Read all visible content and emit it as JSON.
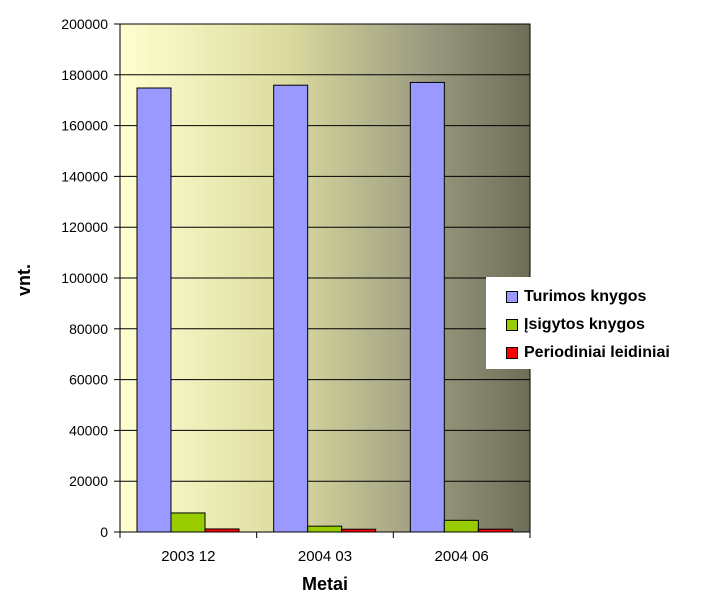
{
  "chart_data": {
    "type": "bar",
    "title": "",
    "xlabel": "Metai",
    "ylabel": "vnt.",
    "categories": [
      "2003 12",
      "2004 03",
      "2004 06"
    ],
    "series": [
      {
        "name": "Turimos knygos",
        "color": "#9999ff",
        "values": [
          174800,
          175900,
          177000
        ]
      },
      {
        "name": "Įsigytos knygos",
        "color": "#99cc00",
        "values": [
          7500,
          2300,
          4600
        ]
      },
      {
        "name": "Periodiniai leidiniai",
        "color": "#ff0000",
        "values": [
          1200,
          1100,
          1100
        ]
      }
    ],
    "ylim": [
      0,
      200000
    ],
    "yticks": [
      0,
      20000,
      40000,
      60000,
      80000,
      100000,
      120000,
      140000,
      160000,
      180000,
      200000
    ],
    "ytick_labels": [
      "0",
      "20000",
      "40000",
      "60000",
      "80000",
      "100000",
      "120000",
      "140000",
      "160000",
      "180000",
      "200000"
    ],
    "grid": true,
    "legend_position": "right",
    "background_gradient": [
      "#ffffd0",
      "#dcdca0",
      "#9a9a80",
      "#6e6e58"
    ]
  }
}
